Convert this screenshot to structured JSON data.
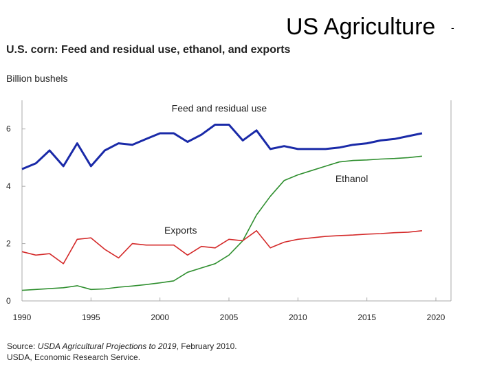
{
  "slide": {
    "title": "US Agriculture",
    "dash": "-"
  },
  "source": {
    "prefix": "Source: ",
    "publication": "USDA Agricultural Projections to 2019",
    "suffix": ", February 2010.",
    "line2": "USDA, Economic Research Service."
  },
  "colors": {
    "feed": "#1a2aa8",
    "ethanol": "#2f8f2f",
    "exports": "#d42a2a",
    "axis": "#aaaaaa"
  },
  "chart_data": {
    "type": "line",
    "title": "U.S. corn: Feed and residual use, ethanol, and exports",
    "ylabel": "Billion bushels",
    "xlabel": "",
    "xlim": [
      1990,
      2020
    ],
    "ylim": [
      0,
      7
    ],
    "x_ticks": [
      "1990",
      "1995",
      "2000",
      "2005",
      "2010",
      "2015",
      "2020"
    ],
    "x_tick_values": [
      1990,
      1995,
      2000,
      2005,
      2010,
      2015,
      2020
    ],
    "y_ticks": [
      "0",
      "2",
      "4",
      "6"
    ],
    "y_tick_values": [
      0,
      2,
      4,
      6
    ],
    "x": [
      1990,
      1991,
      1992,
      1993,
      1994,
      1995,
      1996,
      1997,
      1998,
      1999,
      2000,
      2001,
      2002,
      2003,
      2004,
      2005,
      2006,
      2007,
      2008,
      2009,
      2010,
      2011,
      2012,
      2013,
      2014,
      2015,
      2016,
      2017,
      2018,
      2019
    ],
    "series": [
      {
        "name": "Feed and residual use",
        "key": "feed",
        "values": [
          4.6,
          4.8,
          5.25,
          4.7,
          5.5,
          4.7,
          5.25,
          5.5,
          5.45,
          5.65,
          5.85,
          5.85,
          5.55,
          5.8,
          6.15,
          6.15,
          5.6,
          5.95,
          5.3,
          5.4,
          5.3,
          5.3,
          5.3,
          5.35,
          5.45,
          5.5,
          5.6,
          5.65,
          5.75,
          5.85
        ]
      },
      {
        "name": "Ethanol",
        "key": "ethanol",
        "values": [
          0.37,
          0.4,
          0.43,
          0.46,
          0.53,
          0.4,
          0.42,
          0.48,
          0.52,
          0.57,
          0.63,
          0.7,
          1.0,
          1.15,
          1.3,
          1.6,
          2.1,
          3.0,
          3.65,
          4.2,
          4.4,
          4.55,
          4.7,
          4.85,
          4.9,
          4.92,
          4.95,
          4.97,
          5.0,
          5.05
        ]
      },
      {
        "name": "Exports",
        "key": "exports",
        "values": [
          1.72,
          1.6,
          1.65,
          1.3,
          2.15,
          2.2,
          1.8,
          1.5,
          2.0,
          1.95,
          1.95,
          1.95,
          1.6,
          1.9,
          1.85,
          2.15,
          2.1,
          2.45,
          1.85,
          2.05,
          2.15,
          2.2,
          2.25,
          2.28,
          2.3,
          2.33,
          2.35,
          2.38,
          2.4,
          2.45
        ]
      }
    ],
    "annotations": [
      {
        "series": "feed",
        "text": "Feed and residual use",
        "at_x": 2004.3,
        "at_y": 6.6
      },
      {
        "series": "ethanol",
        "text": "Ethanol",
        "at_x": 2013.9,
        "at_y": 4.15
      },
      {
        "series": "exports",
        "text": "Exports",
        "at_x": 2001.5,
        "at_y": 2.35
      }
    ]
  }
}
